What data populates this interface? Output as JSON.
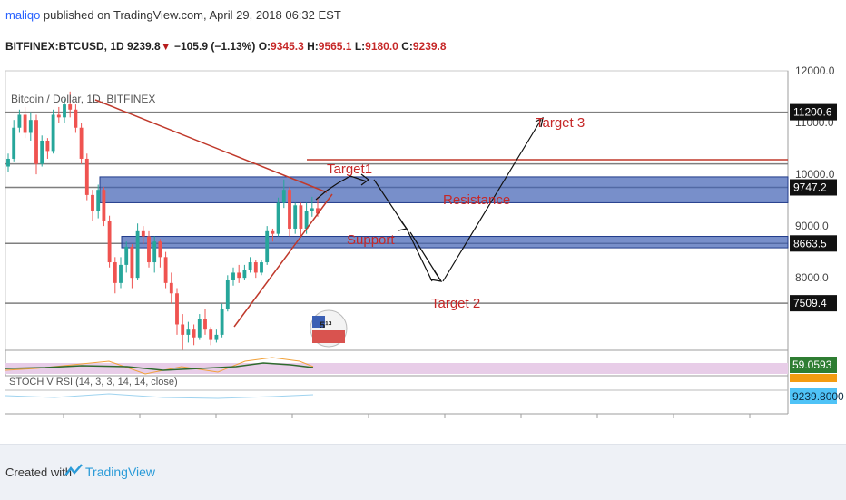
{
  "header": {
    "user": "maliqo",
    "published": " published on TradingView.com, April 29, 2018 06:32 EST",
    "symbol": "BITFINEX:BTCUSD, 1D",
    "last": "9239.8",
    "change": "−105.9 (−1.13%)",
    "o_label": "O:",
    "o": "9345.3",
    "h_label": "H:",
    "h": "9565.1",
    "l_label": "L:",
    "l": "9180.0",
    "c_label": "C:",
    "c": "9239.8"
  },
  "chart_data": {
    "type": "candlestick",
    "title": "Bitcoin / Dollar, 1D, BITFINEX",
    "ylim": [
      6600,
      12000
    ],
    "y_ticks": [
      12000,
      11000,
      10000,
      9000,
      8000
    ],
    "price_labels": [
      "11200.6",
      "9747.2",
      "8663.5",
      "7509.4"
    ],
    "horizontal_levels": [
      11200.6,
      9747.2,
      8663.5,
      7509.4,
      10200
    ],
    "zones": [
      {
        "name": "Resistance",
        "from": 9450,
        "to": 9950
      },
      {
        "name": "Support",
        "from": 8580,
        "to": 8800
      }
    ],
    "annotations": [
      "Target1",
      "Resistance",
      "Support",
      "Target 2",
      "Target 3"
    ],
    "candles": [
      {
        "o": 10150,
        "c": 10300,
        "h": 10400,
        "l": 10050
      },
      {
        "o": 10300,
        "c": 10900,
        "h": 11050,
        "l": 10250
      },
      {
        "o": 10900,
        "c": 11150,
        "h": 11250,
        "l": 10800
      },
      {
        "o": 11150,
        "c": 10800,
        "h": 11300,
        "l": 10700
      },
      {
        "o": 10800,
        "c": 11050,
        "h": 11200,
        "l": 10650
      },
      {
        "o": 11050,
        "c": 10200,
        "h": 11150,
        "l": 10000
      },
      {
        "o": 10200,
        "c": 10650,
        "h": 10750,
        "l": 10150
      },
      {
        "o": 10650,
        "c": 10450,
        "h": 10700,
        "l": 10300
      },
      {
        "o": 10450,
        "c": 11150,
        "h": 11250,
        "l": 10400
      },
      {
        "o": 11150,
        "c": 11100,
        "h": 11300,
        "l": 11000
      },
      {
        "o": 11100,
        "c": 11350,
        "h": 11450,
        "l": 11000
      },
      {
        "o": 11350,
        "c": 11250,
        "h": 11600,
        "l": 11100
      },
      {
        "o": 11250,
        "c": 10900,
        "h": 11350,
        "l": 10800
      },
      {
        "o": 10900,
        "c": 10300,
        "h": 11000,
        "l": 10200
      },
      {
        "o": 10300,
        "c": 9600,
        "h": 10400,
        "l": 9500
      },
      {
        "o": 9600,
        "c": 9300,
        "h": 9700,
        "l": 9100
      },
      {
        "o": 9300,
        "c": 9700,
        "h": 9800,
        "l": 9150
      },
      {
        "o": 9700,
        "c": 9100,
        "h": 9750,
        "l": 9000
      },
      {
        "o": 9100,
        "c": 8300,
        "h": 9200,
        "l": 8200
      },
      {
        "o": 8300,
        "c": 7900,
        "h": 8400,
        "l": 7700
      },
      {
        "o": 7900,
        "c": 8250,
        "h": 8400,
        "l": 7800
      },
      {
        "o": 8250,
        "c": 8600,
        "h": 8700,
        "l": 8100
      },
      {
        "o": 8600,
        "c": 8000,
        "h": 8650,
        "l": 7800
      },
      {
        "o": 8000,
        "c": 8900,
        "h": 9050,
        "l": 7950
      },
      {
        "o": 8900,
        "c": 8800,
        "h": 9000,
        "l": 8650
      },
      {
        "o": 8800,
        "c": 8300,
        "h": 8900,
        "l": 8200
      },
      {
        "o": 8300,
        "c": 8700,
        "h": 8800,
        "l": 8100
      },
      {
        "o": 8700,
        "c": 8400,
        "h": 8750,
        "l": 8200
      },
      {
        "o": 8400,
        "c": 7900,
        "h": 8500,
        "l": 7800
      },
      {
        "o": 7900,
        "c": 7700,
        "h": 8100,
        "l": 7500
      },
      {
        "o": 7700,
        "c": 7100,
        "h": 7800,
        "l": 6900
      },
      {
        "o": 7100,
        "c": 6900,
        "h": 7300,
        "l": 6600
      },
      {
        "o": 6900,
        "c": 7000,
        "h": 7150,
        "l": 6750
      },
      {
        "o": 7000,
        "c": 6850,
        "h": 7100,
        "l": 6700
      },
      {
        "o": 6850,
        "c": 7200,
        "h": 7300,
        "l": 6800
      },
      {
        "o": 7200,
        "c": 7000,
        "h": 7400,
        "l": 6900
      },
      {
        "o": 7000,
        "c": 6800,
        "h": 7050,
        "l": 6700
      },
      {
        "o": 6800,
        "c": 6900,
        "h": 7000,
        "l": 6750
      },
      {
        "o": 6900,
        "c": 7400,
        "h": 7500,
        "l": 6850
      },
      {
        "o": 7400,
        "c": 7950,
        "h": 8050,
        "l": 7350
      },
      {
        "o": 7950,
        "c": 8100,
        "h": 8200,
        "l": 7850
      },
      {
        "o": 8100,
        "c": 8000,
        "h": 8250,
        "l": 7900
      },
      {
        "o": 8000,
        "c": 8150,
        "h": 8250,
        "l": 7950
      },
      {
        "o": 8150,
        "c": 8300,
        "h": 8400,
        "l": 8100
      },
      {
        "o": 8300,
        "c": 8100,
        "h": 8350,
        "l": 8000
      },
      {
        "o": 8100,
        "c": 8300,
        "h": 8350,
        "l": 8050
      },
      {
        "o": 8300,
        "c": 8900,
        "h": 9000,
        "l": 8250
      },
      {
        "o": 8900,
        "c": 8850,
        "h": 8950,
        "l": 8700
      },
      {
        "o": 8850,
        "c": 9450,
        "h": 9550,
        "l": 8800
      },
      {
        "o": 9450,
        "c": 9700,
        "h": 9900,
        "l": 9350
      },
      {
        "o": 9700,
        "c": 8950,
        "h": 9750,
        "l": 8800
      },
      {
        "o": 8950,
        "c": 9400,
        "h": 9450,
        "l": 8850
      },
      {
        "o": 9400,
        "c": 8950,
        "h": 9450,
        "l": 8800
      },
      {
        "o": 8950,
        "c": 9300,
        "h": 9450,
        "l": 8850
      },
      {
        "o": 9300,
        "c": 9345,
        "h": 9565,
        "l": 9180
      },
      {
        "o": 9345,
        "c": 9240,
        "h": 9565,
        "l": 9180
      }
    ],
    "indicator": {
      "label": "STOCH V RSI (14, 3, 3, 14, 14, close)",
      "value": "59.0593",
      "price_label": "9239.8000"
    }
  },
  "badge": {
    "text": "5¹³"
  },
  "footer": {
    "created": "Created with",
    "brand": "TradingView"
  },
  "colors": {
    "up": "#26a69a",
    "down": "#ef5350",
    "zone": "#3f5fb4",
    "trend": "#c0392b",
    "annotation": "#c62828",
    "level": "#7f7f7f"
  }
}
